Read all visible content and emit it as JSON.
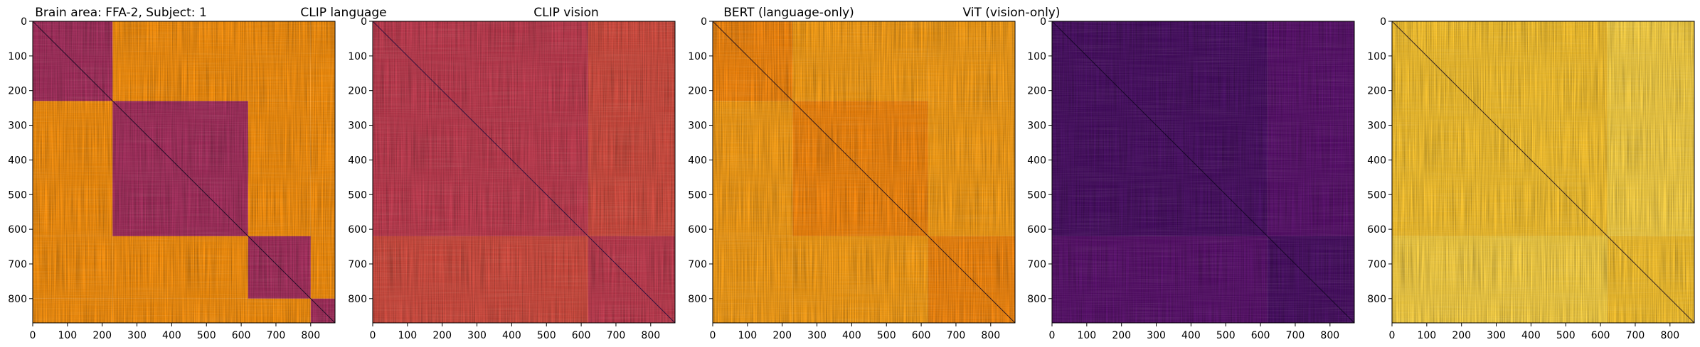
{
  "figure": {
    "panels": [
      {
        "title": "Brain area: FFA-2, Subject: 1"
      },
      {
        "title": "CLIP language"
      },
      {
        "title": "CLIP vision"
      },
      {
        "title": "BERT (language-only)"
      },
      {
        "title": "ViT (vision-only)"
      }
    ]
  },
  "chart_data": [
    {
      "type": "heatmap",
      "title": "Brain area: FFA-2, Subject: 1",
      "colormap": "inferno",
      "n": 870,
      "xlim": [
        0,
        870
      ],
      "ylim": [
        870,
        0
      ],
      "xticks": [
        0,
        100,
        200,
        300,
        400,
        500,
        600,
        700,
        800
      ],
      "yticks": [
        0,
        100,
        200,
        300,
        400,
        500,
        600,
        700,
        800
      ],
      "block_boundaries": [
        230,
        620,
        800
      ],
      "diagonal_block_level": 0.45,
      "off_block_level": 0.76,
      "diagonal_level": 0.05,
      "grid": false
    },
    {
      "type": "heatmap",
      "title": "CLIP language",
      "colormap": "inferno",
      "n": 870,
      "xlim": [
        0,
        870
      ],
      "ylim": [
        870,
        0
      ],
      "xticks": [
        0,
        100,
        200,
        300,
        400,
        500,
        600,
        700,
        800
      ],
      "yticks": [
        0,
        100,
        200,
        300,
        400,
        500,
        600,
        700,
        800
      ],
      "block_boundaries": [
        620
      ],
      "diagonal_block_level": 0.52,
      "off_block_level": 0.58,
      "diagonal_level": 0.1,
      "grid": false
    },
    {
      "type": "heatmap",
      "title": "CLIP vision",
      "colormap": "inferno",
      "n": 870,
      "xlim": [
        0,
        870
      ],
      "ylim": [
        870,
        0
      ],
      "xticks": [
        0,
        100,
        200,
        300,
        400,
        500,
        600,
        700,
        800
      ],
      "yticks": [
        0,
        100,
        200,
        300,
        400,
        500,
        600,
        700,
        800
      ],
      "block_boundaries": [
        230,
        620
      ],
      "diagonal_block_level": 0.74,
      "off_block_level": 0.79,
      "diagonal_level": 0.05,
      "grid": false
    },
    {
      "type": "heatmap",
      "title": "BERT (language-only)",
      "colormap": "inferno",
      "n": 870,
      "xlim": [
        0,
        870
      ],
      "ylim": [
        870,
        0
      ],
      "xticks": [
        0,
        100,
        200,
        300,
        400,
        500,
        600,
        700,
        800
      ],
      "yticks": [
        0,
        100,
        200,
        300,
        400,
        500,
        600,
        700,
        800
      ],
      "block_boundaries": [
        620
      ],
      "diagonal_block_level": 0.22,
      "off_block_level": 0.26,
      "diagonal_level": 0.05,
      "grid": false
    },
    {
      "type": "heatmap",
      "title": "ViT (vision-only)",
      "colormap": "inferno",
      "n": 870,
      "xlim": [
        0,
        870
      ],
      "ylim": [
        870,
        0
      ],
      "xticks": [
        0,
        100,
        200,
        300,
        400,
        500,
        600,
        700,
        800
      ],
      "yticks": [
        0,
        100,
        200,
        300,
        400,
        500,
        600,
        700,
        800
      ],
      "block_boundaries": [
        620
      ],
      "diagonal_block_level": 0.87,
      "off_block_level": 0.9,
      "diagonal_level": 0.05,
      "grid": false
    }
  ]
}
